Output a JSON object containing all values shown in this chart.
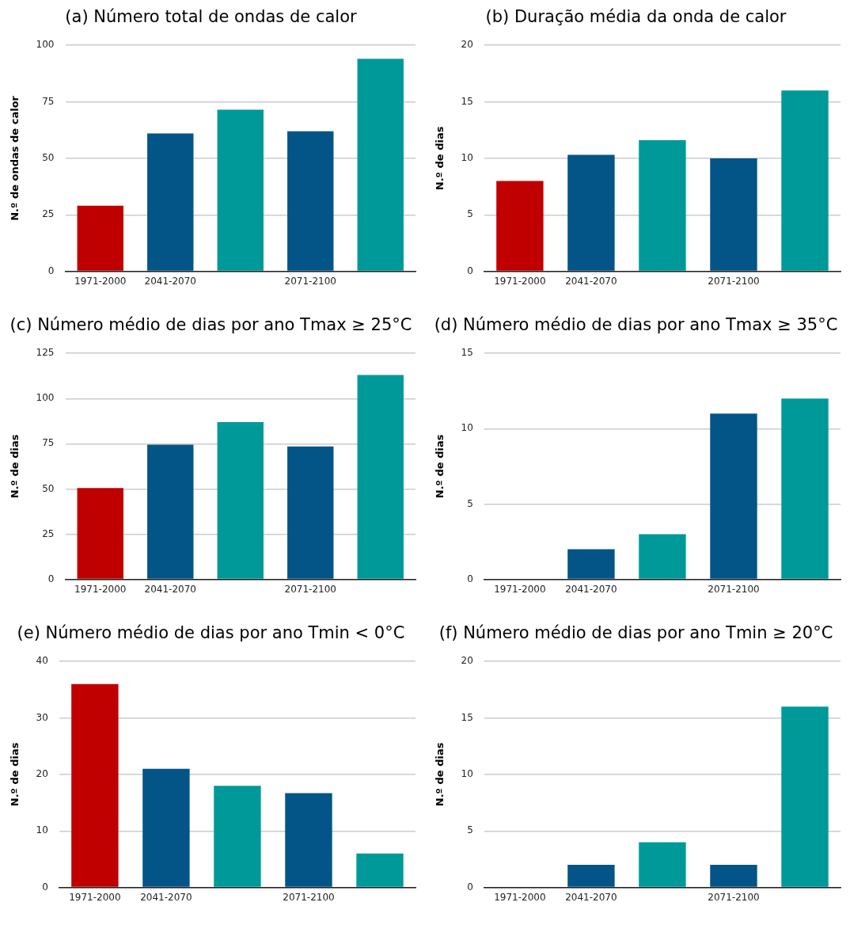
{
  "chart_data": [
    {
      "type": "bar",
      "title": "(a) Número total de ondas de calor",
      "ylabel": "N.º de ondas de calor",
      "categories": [
        "1971-2000",
        "2041-2070",
        null,
        "2071-2100",
        null
      ],
      "values": [
        29,
        61,
        71.5,
        62,
        94
      ],
      "colors": [
        "#c00000",
        "#045587",
        "#009999",
        "#045587",
        "#009999"
      ],
      "ylim": [
        0,
        100
      ],
      "yticks": [
        0,
        25,
        50,
        75,
        100
      ],
      "grid": "y",
      "legend": false
    },
    {
      "type": "bar",
      "title": "(b) Duração média da onda de calor",
      "ylabel": "N.º de dias",
      "categories": [
        "1971-2000",
        "2041-2070",
        null,
        "2071-2100",
        null
      ],
      "values": [
        8,
        10.3,
        11.6,
        10,
        16
      ],
      "colors": [
        "#c00000",
        "#045587",
        "#009999",
        "#045587",
        "#009999"
      ],
      "ylim": [
        0,
        20
      ],
      "yticks": [
        0,
        5,
        10,
        15,
        20
      ],
      "grid": "y",
      "legend": false
    },
    {
      "type": "bar",
      "title": "(c) Número médio de dias por ano Tmax ≥ 25°C",
      "ylabel": "N.º de dias",
      "categories": [
        "1971-2000",
        "2041-2070",
        null,
        "2071-2100",
        null
      ],
      "values": [
        50.5,
        74.5,
        87,
        73.5,
        113
      ],
      "colors": [
        "#c00000",
        "#045587",
        "#009999",
        "#045587",
        "#009999"
      ],
      "ylim": [
        0,
        125
      ],
      "yticks": [
        0,
        25,
        50,
        75,
        100,
        125
      ],
      "grid": "y",
      "legend": false
    },
    {
      "type": "bar",
      "title": "(d) Número médio de dias por ano Tmax ≥ 35°C",
      "ylabel": "N.º de dias",
      "categories": [
        "1971-2000",
        "2041-2070",
        null,
        "2071-2100",
        null
      ],
      "values": [
        0,
        2,
        3,
        11,
        12
      ],
      "colors": [
        "#c00000",
        "#045587",
        "#009999",
        "#045587",
        "#009999"
      ],
      "ylim": [
        0,
        15
      ],
      "yticks": [
        0,
        5,
        10,
        15
      ],
      "grid": "y",
      "legend": false
    },
    {
      "type": "bar",
      "title": "(e) Número médio de dias por ano Tmin < 0°C",
      "ylabel": "N.º de dias",
      "categories": [
        "1971-2000",
        "2041-2070",
        null,
        "2071-2100",
        null
      ],
      "values": [
        36,
        21,
        18,
        16.7,
        6
      ],
      "colors": [
        "#c00000",
        "#045587",
        "#009999",
        "#045587",
        "#009999"
      ],
      "ylim": [
        0,
        40
      ],
      "yticks": [
        0,
        10,
        20,
        30,
        40
      ],
      "grid": "y",
      "legend": false
    },
    {
      "type": "bar",
      "title": "(f) Número médio de dias por ano Tmin ≥ 20°C",
      "ylabel": "N.º de dias",
      "categories": [
        "1971-2000",
        "2041-2070",
        null,
        "2071-2100",
        null
      ],
      "values": [
        0,
        2,
        4,
        2,
        16
      ],
      "colors": [
        "#c00000",
        "#045587",
        "#009999",
        "#045587",
        "#009999"
      ],
      "ylim": [
        0,
        20
      ],
      "yticks": [
        0,
        5,
        10,
        15,
        20
      ],
      "grid": "y",
      "legend": false
    }
  ]
}
